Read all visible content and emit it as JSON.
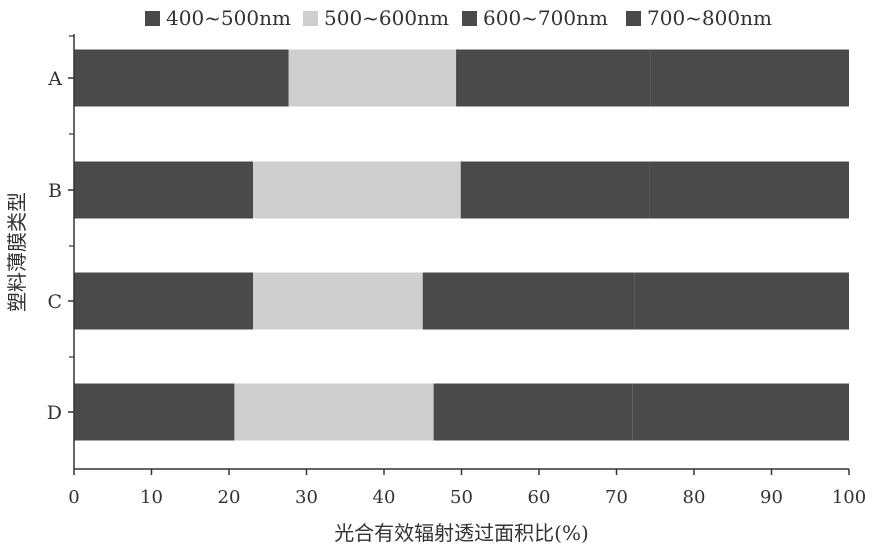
{
  "chart_data": {
    "type": "bar",
    "orientation": "horizontal",
    "stacked": true,
    "categories": [
      "A",
      "B",
      "C",
      "D"
    ],
    "series": [
      {
        "name": "400~500nm",
        "color": "#4a4a4a",
        "values": [
          27.7,
          23.1,
          23.1,
          20.7
        ]
      },
      {
        "name": "500~600nm",
        "color": "#cfcfcf",
        "values": [
          21.6,
          26.8,
          21.9,
          25.7
        ]
      },
      {
        "name": "600~700nm",
        "color": "#4a4a4a",
        "values": [
          25.1,
          24.3,
          27.3,
          25.7
        ]
      },
      {
        "name": "700~800nm",
        "color": "#4a4a4a",
        "values": [
          25.6,
          25.8,
          27.7,
          27.9
        ]
      }
    ],
    "xlim": [
      0,
      100
    ],
    "xticks": [
      0,
      10,
      20,
      30,
      40,
      50,
      60,
      70,
      80,
      90,
      100
    ],
    "xlabel": "光合有效辐射透过面积比(%)",
    "ylabel": "塑料薄膜类型",
    "grid": false,
    "legend_position": "top"
  }
}
